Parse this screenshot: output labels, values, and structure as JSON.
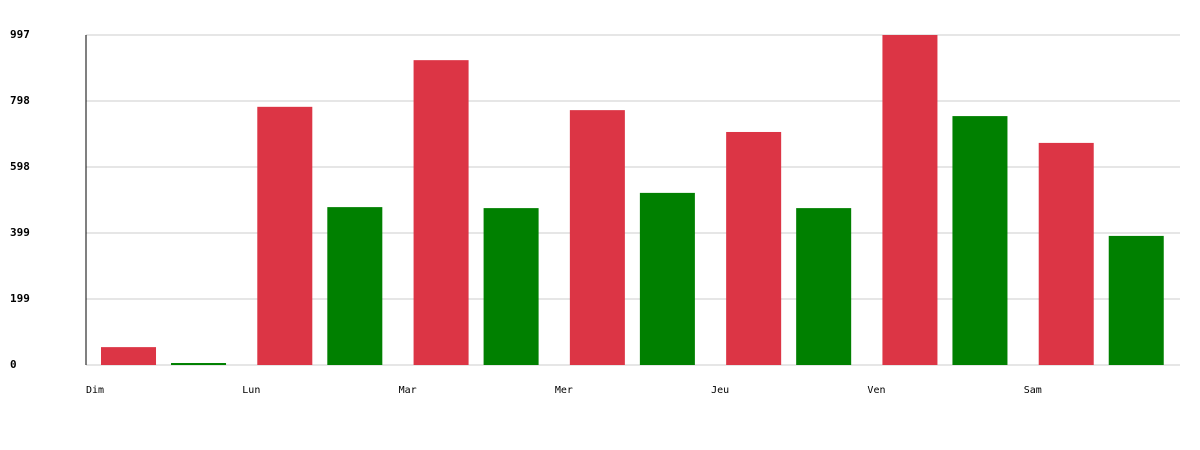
{
  "chart_data": {
    "type": "bar",
    "categories": [
      "Dim",
      "Lun",
      "Mar",
      "Mer",
      "Jeu",
      "Ven",
      "Sam"
    ],
    "series": [
      {
        "color": "#dc3545",
        "values": [
          54,
          780,
          921,
          770,
          704,
          997,
          671
        ]
      },
      {
        "color": "#008000",
        "values": [
          6,
          477,
          474,
          520,
          474,
          752,
          390
        ]
      }
    ],
    "ylim": [
      0,
      997
    ],
    "yticks": [
      0,
      {
        "value": 199.4,
        "label": "199"
      },
      {
        "value": 398.8,
        "label": "399"
      },
      {
        "value": 598.2,
        "label": "598"
      },
      {
        "value": 797.6,
        "label": "798"
      },
      997
    ],
    "grid": true
  }
}
